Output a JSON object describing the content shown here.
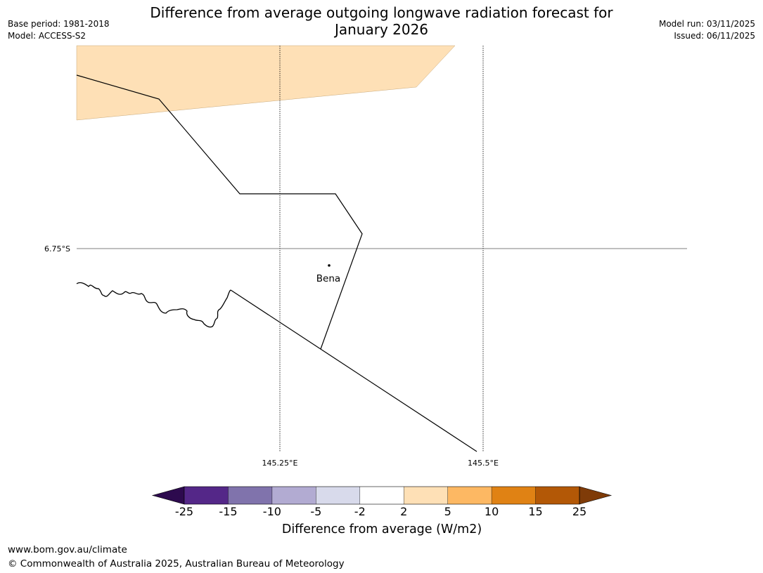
{
  "title": "Difference from average outgoing longwave radiation forecast for January 2026",
  "title_line1": "Difference from average outgoing longwave radiation forecast for",
  "title_line2": "January 2026",
  "meta_left": {
    "base_period": "Base period: 1981-2018",
    "model": "Model: ACCESS-S2"
  },
  "meta_right": {
    "model_run": "Model run: 03/11/2025",
    "issued": "Issued: 06/11/2025"
  },
  "map": {
    "lat_label": "6.75°S",
    "lon_labels": [
      "145.25°E",
      "145.5°E"
    ],
    "place": "Bena"
  },
  "colorbar": {
    "title": "Difference from average (W/m2)",
    "ticks": [
      "-25",
      "-15",
      "-10",
      "-5",
      "-2",
      "2",
      "5",
      "10",
      "15",
      "25"
    ],
    "under_color": "#2d0a4e",
    "over_color": "#7f3b08",
    "colors": [
      "#542788",
      "#8073ac",
      "#b2abd2",
      "#d8daeb",
      "#ffffff",
      "#fee0b6",
      "#fdb863",
      "#e08214",
      "#b35806"
    ]
  },
  "anomaly_fill_color": "#fee0b6",
  "footer": {
    "url": "www.bom.gov.au/climate",
    "copyright": "© Commonwealth of Australia 2025, Australian Bureau of Meteorology"
  }
}
